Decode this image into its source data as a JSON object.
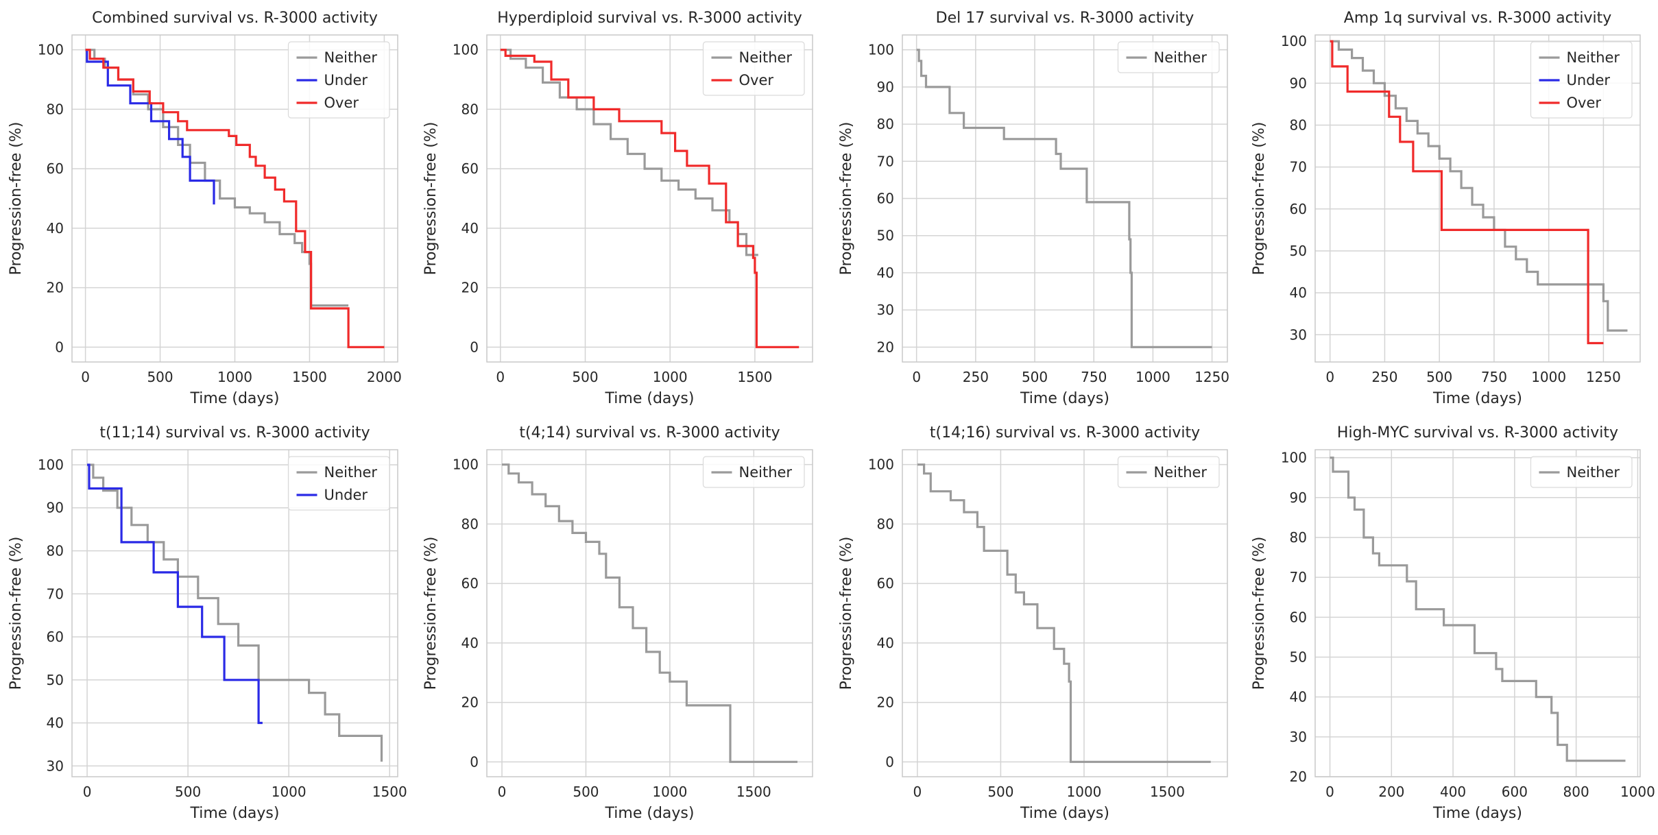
{
  "figure": {
    "background": "#ffffff"
  },
  "colors": {
    "Neither": "#9a9a9a",
    "Under": "#2a2ae6",
    "Over": "#f02a2a",
    "grid": "#d4d4d4",
    "spine": "#c9c9c9"
  },
  "chart_data": [
    {
      "type": "line",
      "title": "Combined survival vs. R-3000 activity",
      "xlabel": "Time (days)",
      "ylabel": "Progression-free (%)",
      "xlim": [
        -90,
        2090
      ],
      "ylim": [
        -5,
        105
      ],
      "xticks": [
        0,
        500,
        1000,
        1500,
        2000
      ],
      "yticks": [
        0,
        20,
        40,
        60,
        80,
        100
      ],
      "legend_position": "top-right",
      "series": [
        {
          "name": "Neither",
          "x": [
            0,
            60,
            130,
            220,
            320,
            420,
            520,
            620,
            700,
            800,
            900,
            1000,
            1100,
            1200,
            1300,
            1400,
            1450,
            1500,
            1510,
            1760
          ],
          "y": [
            100,
            97,
            94,
            90,
            85,
            80,
            74,
            68,
            62,
            56,
            50,
            47,
            45,
            42,
            38,
            35,
            32,
            28,
            14,
            14
          ]
        },
        {
          "name": "Under",
          "x": [
            0,
            10,
            150,
            300,
            440,
            560,
            650,
            700,
            790,
            860
          ],
          "y": [
            100,
            96,
            88,
            82,
            76,
            70,
            64,
            56,
            56,
            48
          ]
        },
        {
          "name": "Over",
          "x": [
            0,
            30,
            120,
            220,
            320,
            430,
            520,
            620,
            680,
            960,
            1010,
            1100,
            1140,
            1200,
            1270,
            1330,
            1410,
            1470,
            1510,
            1760,
            2000
          ],
          "y": [
            100,
            97,
            94,
            90,
            86,
            82,
            79,
            76,
            73,
            71,
            68,
            64,
            61,
            57,
            53,
            49,
            39,
            32,
            13,
            0,
            0
          ]
        }
      ]
    },
    {
      "type": "line",
      "title": "Hyperdiploid survival vs. R-3000 activity",
      "xlabel": "Time (days)",
      "ylabel": "Progression-free (%)",
      "xlim": [
        -80,
        1840
      ],
      "ylim": [
        -5,
        105
      ],
      "xticks": [
        0,
        500,
        1000,
        1500
      ],
      "yticks": [
        0,
        20,
        40,
        60,
        80,
        100
      ],
      "legend_position": "top-right",
      "series": [
        {
          "name": "Neither",
          "x": [
            0,
            60,
            150,
            250,
            350,
            450,
            550,
            650,
            750,
            850,
            950,
            1050,
            1150,
            1250,
            1350,
            1400,
            1450,
            1520
          ],
          "y": [
            100,
            97,
            94,
            89,
            84,
            80,
            75,
            70,
            65,
            60,
            56,
            53,
            50,
            46,
            42,
            38,
            31,
            31
          ]
        },
        {
          "name": "Over",
          "x": [
            0,
            30,
            200,
            300,
            400,
            550,
            700,
            950,
            1030,
            1100,
            1230,
            1330,
            1400,
            1490,
            1500,
            1510,
            1760
          ],
          "y": [
            100,
            98,
            96,
            90,
            84,
            80,
            76,
            72,
            66,
            61,
            55,
            42,
            34,
            30,
            25,
            0,
            0
          ]
        }
      ]
    },
    {
      "type": "line",
      "title": "Del 17 survival vs. R-3000 activity",
      "xlabel": "Time (days)",
      "ylabel": "Progression-free (%)",
      "xlim": [
        -60,
        1315
      ],
      "ylim": [
        16,
        104
      ],
      "xticks": [
        0,
        250,
        500,
        750,
        1000,
        1250
      ],
      "yticks": [
        20,
        30,
        40,
        50,
        60,
        70,
        80,
        90,
        100
      ],
      "legend_position": "top-right",
      "series": [
        {
          "name": "Neither",
          "x": [
            0,
            10,
            20,
            40,
            140,
            200,
            370,
            590,
            610,
            720,
            900,
            905,
            910,
            1250
          ],
          "y": [
            100,
            97,
            93,
            90,
            83,
            79,
            76,
            72,
            68,
            59,
            49,
            40,
            20,
            20
          ]
        }
      ]
    },
    {
      "type": "line",
      "title": "Amp 1q survival vs. R-3000 activity",
      "xlabel": "Time (days)",
      "ylabel": "Progression-free (%)",
      "xlim": [
        -68,
        1418
      ],
      "ylim": [
        23.5,
        101.5
      ],
      "xticks": [
        0,
        250,
        500,
        750,
        1000,
        1250
      ],
      "yticks": [
        30,
        40,
        50,
        60,
        70,
        80,
        90,
        100
      ],
      "legend_position": "top-right",
      "series": [
        {
          "name": "Neither",
          "x": [
            0,
            40,
            100,
            150,
            200,
            250,
            300,
            350,
            400,
            450,
            500,
            550,
            600,
            650,
            700,
            750,
            800,
            850,
            900,
            950,
            1250,
            1270,
            1360
          ],
          "y": [
            100,
            98,
            96,
            93,
            90,
            87,
            84,
            81,
            78,
            75,
            72,
            69,
            65,
            61,
            58,
            55,
            51,
            48,
            45,
            42,
            38,
            31,
            31
          ]
        },
        {
          "name": "Under",
          "x": [
            0
          ],
          "y": [
            100
          ]
        },
        {
          "name": "Over",
          "x": [
            0,
            10,
            80,
            270,
            320,
            380,
            510,
            1180,
            1250
          ],
          "y": [
            100,
            94,
            88,
            82,
            76,
            69,
            55,
            28,
            28
          ]
        }
      ]
    },
    {
      "type": "line",
      "title": "t(11;14) survival vs. R-3000 activity",
      "xlabel": "Time (days)",
      "ylabel": "Progression-free (%)",
      "xlim": [
        -75,
        1540
      ],
      "ylim": [
        27.5,
        103.5
      ],
      "xticks": [
        0,
        500,
        1000,
        1500
      ],
      "yticks": [
        30,
        40,
        50,
        60,
        70,
        80,
        90,
        100
      ],
      "legend_position": "top-right",
      "series": [
        {
          "name": "Neither",
          "x": [
            0,
            30,
            80,
            150,
            220,
            300,
            380,
            450,
            550,
            650,
            750,
            850,
            1050,
            1100,
            1180,
            1250,
            1460
          ],
          "y": [
            100,
            97,
            94,
            90,
            86,
            82,
            78,
            74,
            69,
            63,
            58,
            50,
            50,
            47,
            42,
            37,
            31
          ]
        },
        {
          "name": "Under",
          "x": [
            0,
            10,
            170,
            330,
            450,
            570,
            680,
            850,
            870
          ],
          "y": [
            100,
            94.5,
            82,
            75,
            67,
            60,
            50,
            40,
            40
          ]
        }
      ]
    },
    {
      "type": "line",
      "title": "t(4;14) survival vs. R-3000 activity",
      "xlabel": "Time (days)",
      "ylabel": "Progression-free (%)",
      "xlim": [
        -90,
        1850
      ],
      "ylim": [
        -5,
        105
      ],
      "xticks": [
        0,
        500,
        1000,
        1500
      ],
      "yticks": [
        0,
        20,
        40,
        60,
        80,
        100
      ],
      "legend_position": "top-right",
      "series": [
        {
          "name": "Neither",
          "x": [
            0,
            40,
            100,
            180,
            260,
            340,
            420,
            500,
            580,
            620,
            700,
            780,
            860,
            940,
            1000,
            1100,
            1360,
            1760
          ],
          "y": [
            100,
            97,
            94,
            90,
            86,
            81,
            77,
            74,
            70,
            62,
            52,
            45,
            37,
            30,
            27,
            19,
            0,
            0
          ]
        }
      ]
    },
    {
      "type": "line",
      "title": "t(14;16) survival vs. R-3000 activity",
      "xlabel": "Time (days)",
      "ylabel": "Progression-free (%)",
      "xlim": [
        -90,
        1860
      ],
      "ylim": [
        -5,
        105
      ],
      "xticks": [
        0,
        500,
        1000,
        1500
      ],
      "yticks": [
        0,
        20,
        40,
        60,
        80,
        100
      ],
      "legend_position": "top-right",
      "series": [
        {
          "name": "Neither",
          "x": [
            0,
            40,
            80,
            200,
            280,
            360,
            400,
            540,
            590,
            640,
            720,
            820,
            880,
            910,
            920,
            1760
          ],
          "y": [
            100,
            97,
            91,
            88,
            84,
            79,
            71,
            63,
            57,
            53,
            45,
            38,
            33,
            27,
            0,
            0
          ]
        }
      ]
    },
    {
      "type": "line",
      "title": "High-MYC survival vs. R-3000 activity",
      "xlabel": "Time (days)",
      "ylabel": "Progression-free (%)",
      "xlim": [
        -48,
        1008
      ],
      "ylim": [
        20,
        102
      ],
      "xticks": [
        0,
        200,
        400,
        600,
        800,
        1000
      ],
      "yticks": [
        20,
        30,
        40,
        50,
        60,
        70,
        80,
        90,
        100
      ],
      "legend_position": "top-right",
      "series": [
        {
          "name": "Neither",
          "x": [
            0,
            10,
            60,
            80,
            110,
            140,
            160,
            200,
            250,
            280,
            370,
            470,
            540,
            560,
            670,
            720,
            740,
            770,
            960
          ],
          "y": [
            100,
            96.5,
            90,
            87,
            80,
            76,
            73,
            73,
            69,
            62,
            58,
            51,
            47,
            44,
            40,
            36,
            28,
            24,
            24
          ]
        }
      ]
    }
  ]
}
